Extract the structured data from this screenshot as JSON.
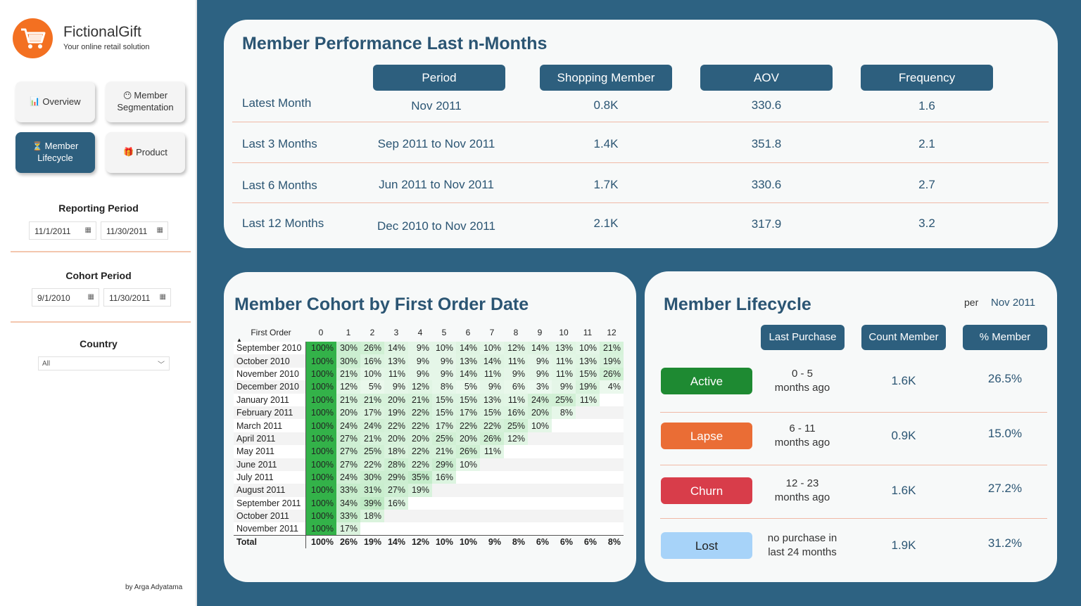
{
  "app": {
    "name": "FictionalGift",
    "subtitle": "Your online retail solution",
    "byline": "by Arga Adyatama",
    "logo_icon": "shopping-cart-icon"
  },
  "nav": {
    "overview": "Overview",
    "segmentation_1": "Member",
    "segmentation_2": "Segmentation",
    "lifecycle_1": "Member",
    "lifecycle_2": "Lifecycle",
    "product": "Product"
  },
  "filters": {
    "reporting_title": "Reporting Period",
    "reporting_start": "11/1/2011",
    "reporting_end": "11/30/2011",
    "cohort_title": "Cohort Period",
    "cohort_start": "9/1/2010",
    "cohort_end": "11/30/2011",
    "country_title": "Country",
    "country_value": "All"
  },
  "performance": {
    "title": "Member Performance Last n-Months",
    "headers": {
      "period": "Period",
      "shopping": "Shopping Member",
      "aov": "AOV",
      "frequency": "Frequency"
    },
    "rows": [
      {
        "label": "Latest Month",
        "period": "Nov 2011",
        "shopping": "0.8K",
        "aov": "330.6",
        "frequency": "1.6"
      },
      {
        "label": "Last 3 Months",
        "period": "Sep 2011 to Nov 2011",
        "shopping": "1.4K",
        "aov": "351.8",
        "frequency": "2.1"
      },
      {
        "label": "Last 6 Months",
        "period": "Jun 2011 to Nov 2011",
        "shopping": "1.7K",
        "aov": "330.6",
        "frequency": "2.7"
      },
      {
        "label": "Last 12 Months",
        "period": "Dec 2010 to Nov 2011",
        "shopping": "2.1K",
        "aov": "317.9",
        "frequency": "3.2"
      }
    ]
  },
  "cohort": {
    "title": "Member Cohort by First Order Date",
    "row_header": "First Order",
    "columns": [
      "0",
      "1",
      "2",
      "3",
      "4",
      "5",
      "6",
      "7",
      "8",
      "9",
      "10",
      "11",
      "12"
    ],
    "rows": [
      {
        "label": "September 2010",
        "values": [
          100,
          30,
          26,
          14,
          9,
          10,
          14,
          10,
          12,
          14,
          13,
          10,
          21
        ]
      },
      {
        "label": "October 2010",
        "values": [
          100,
          30,
          16,
          13,
          9,
          9,
          13,
          14,
          11,
          9,
          11,
          13,
          19
        ]
      },
      {
        "label": "November 2010",
        "values": [
          100,
          21,
          10,
          11,
          9,
          9,
          14,
          11,
          9,
          9,
          11,
          15,
          26
        ]
      },
      {
        "label": "December 2010",
        "values": [
          100,
          12,
          5,
          9,
          12,
          8,
          5,
          9,
          6,
          3,
          9,
          19,
          4
        ]
      },
      {
        "label": "January 2011",
        "values": [
          100,
          21,
          21,
          20,
          21,
          15,
          15,
          13,
          11,
          24,
          25,
          11
        ]
      },
      {
        "label": "February 2011",
        "values": [
          100,
          20,
          17,
          19,
          22,
          15,
          17,
          15,
          16,
          20,
          8
        ]
      },
      {
        "label": "March 2011",
        "values": [
          100,
          24,
          24,
          22,
          22,
          17,
          22,
          22,
          25,
          10
        ]
      },
      {
        "label": "April 2011",
        "values": [
          100,
          27,
          21,
          20,
          20,
          25,
          20,
          26,
          12
        ]
      },
      {
        "label": "May 2011",
        "values": [
          100,
          27,
          25,
          18,
          22,
          21,
          26,
          11
        ]
      },
      {
        "label": "June 2011",
        "values": [
          100,
          27,
          22,
          28,
          22,
          29,
          10
        ]
      },
      {
        "label": "July 2011",
        "values": [
          100,
          24,
          30,
          29,
          35,
          16
        ]
      },
      {
        "label": "August 2011",
        "values": [
          100,
          33,
          31,
          27,
          19
        ]
      },
      {
        "label": "September 2011",
        "values": [
          100,
          34,
          39,
          16
        ]
      },
      {
        "label": "October 2011",
        "values": [
          100,
          33,
          18
        ]
      },
      {
        "label": "November 2011",
        "values": [
          100,
          17
        ]
      }
    ],
    "total_label": "Total",
    "totals": [
      100,
      26,
      19,
      14,
      12,
      10,
      10,
      9,
      8,
      6,
      6,
      6,
      8
    ],
    "heat_color": "#33b249"
  },
  "lifecycle": {
    "title": "Member Lifecycle",
    "per_label": "per",
    "per_value": "Nov 2011",
    "headers": {
      "last_purchase": "Last Purchase",
      "count": "Count Member",
      "pct": "% Member"
    },
    "rows": [
      {
        "badge": "Active",
        "line1": "0  - 5",
        "line2": "months ago",
        "count": "1.6K",
        "pct": "26.5%",
        "color": "#1e8a32",
        "text_color": "#ffffff"
      },
      {
        "badge": "Lapse",
        "line1": "6  - 11",
        "line2": "months ago",
        "count": "0.9K",
        "pct": "15.0%",
        "color": "#ea6d35",
        "text_color": "#ffffff"
      },
      {
        "badge": "Churn",
        "line1": "12  - 23",
        "line2": "months ago",
        "count": "1.6K",
        "pct": "27.2%",
        "color": "#d83d4a",
        "text_color": "#ffffff"
      },
      {
        "badge": "Lost",
        "line1": "no purchase in",
        "line2": "last 24 months",
        "count": "1.9K",
        "pct": "31.2%",
        "color": "#a7d3f9",
        "text_color": "#222222"
      }
    ]
  },
  "colors": {
    "background": "#2d6282",
    "accent": "#2d5f7e",
    "brand": "#f37021",
    "divider": "#f0b9a6"
  }
}
